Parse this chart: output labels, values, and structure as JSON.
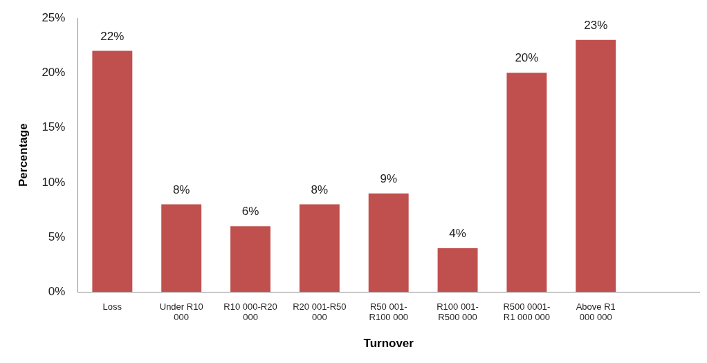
{
  "chart_data": {
    "type": "bar",
    "xlabel": "Turnover",
    "ylabel": "Percentage",
    "categories": [
      "Loss",
      "Under R10 000",
      "R10 000-R20 000",
      "R20 001-R50 000",
      "R50 001-R100 000",
      "R100 001-R500 000",
      "R500 0001-R1 000 000",
      "Above R1 000 000",
      null
    ],
    "values": [
      22,
      8,
      6,
      8,
      9,
      4,
      20,
      23,
      null
    ],
    "value_labels": [
      "22%",
      "8%",
      "6%",
      "8%",
      "9%",
      "4%",
      "20%",
      "23%",
      null
    ],
    "color": "#c0504d",
    "ylim": [
      0,
      25
    ],
    "yticks": [
      {
        "value": 0,
        "label": "0%"
      },
      {
        "value": 5,
        "label": "5%"
      },
      {
        "value": 10,
        "label": "10%"
      },
      {
        "value": 15,
        "label": "15%"
      },
      {
        "value": 20,
        "label": "20%"
      },
      {
        "value": 25,
        "label": "25%"
      }
    ],
    "grid": false,
    "legend": false
  }
}
